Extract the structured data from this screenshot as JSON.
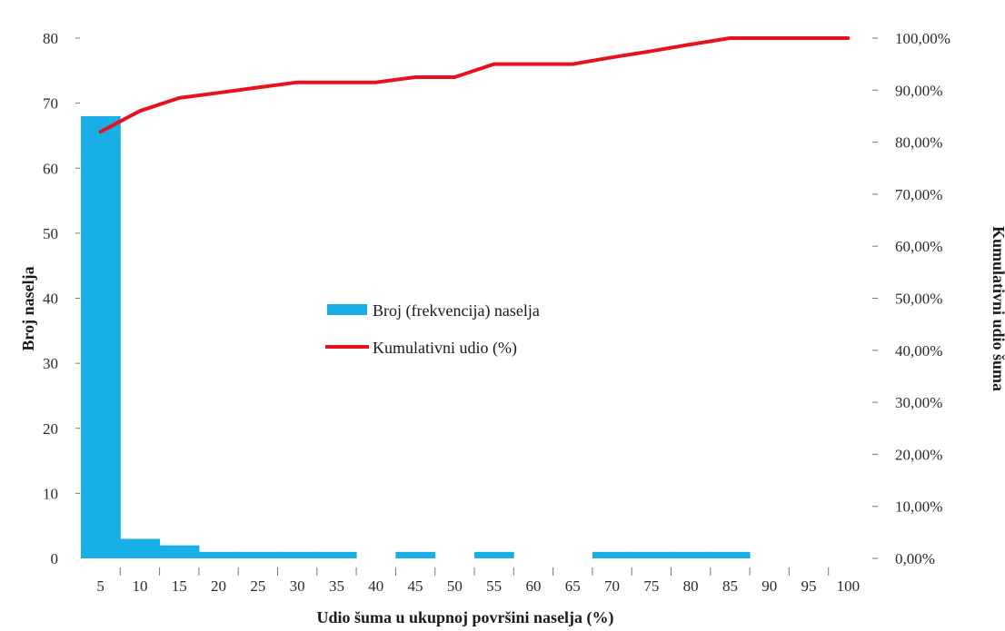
{
  "chart_data": {
    "type": "bar",
    "categories": [
      "5",
      "10",
      "15",
      "20",
      "25",
      "30",
      "35",
      "40",
      "45",
      "50",
      "55",
      "60",
      "65",
      "70",
      "75",
      "80",
      "85",
      "90",
      "95",
      "100"
    ],
    "series": [
      {
        "name": "Broj (frekvencija) naselja",
        "type": "bar",
        "axis": "left",
        "color": "#19aee6",
        "values": [
          68,
          3,
          2,
          1,
          1,
          1,
          1,
          0,
          1,
          0,
          1,
          0,
          0,
          1,
          1,
          1,
          1,
          0,
          0,
          0
        ]
      },
      {
        "name": "Kumulativni udio (%)",
        "type": "line",
        "axis": "right",
        "color": "#e8121c",
        "values": [
          82.0,
          86.0,
          88.5,
          89.5,
          90.5,
          91.5,
          91.5,
          91.5,
          92.5,
          92.5,
          95.0,
          95.0,
          95.0,
          96.3,
          97.5,
          98.8,
          100.0,
          100.0,
          100.0,
          100.0
        ]
      }
    ],
    "xlabel": "Udio šuma u ukupnoj površini naselja (%)",
    "ylabel": "Broj naselja",
    "y2label": "Kumulativni udio šuma",
    "ylim": [
      0,
      80
    ],
    "y2lim": [
      0,
      100
    ],
    "yticks": [
      "0",
      "10",
      "20",
      "30",
      "40",
      "50",
      "60",
      "70",
      "80"
    ],
    "y2ticks": [
      "0,00%",
      "10,00%",
      "20,00%",
      "30,00%",
      "40,00%",
      "50,00%",
      "60,00%",
      "70,00%",
      "80,00%",
      "90,00%",
      "100,00%"
    ],
    "legend_position": "center",
    "grid": false
  }
}
